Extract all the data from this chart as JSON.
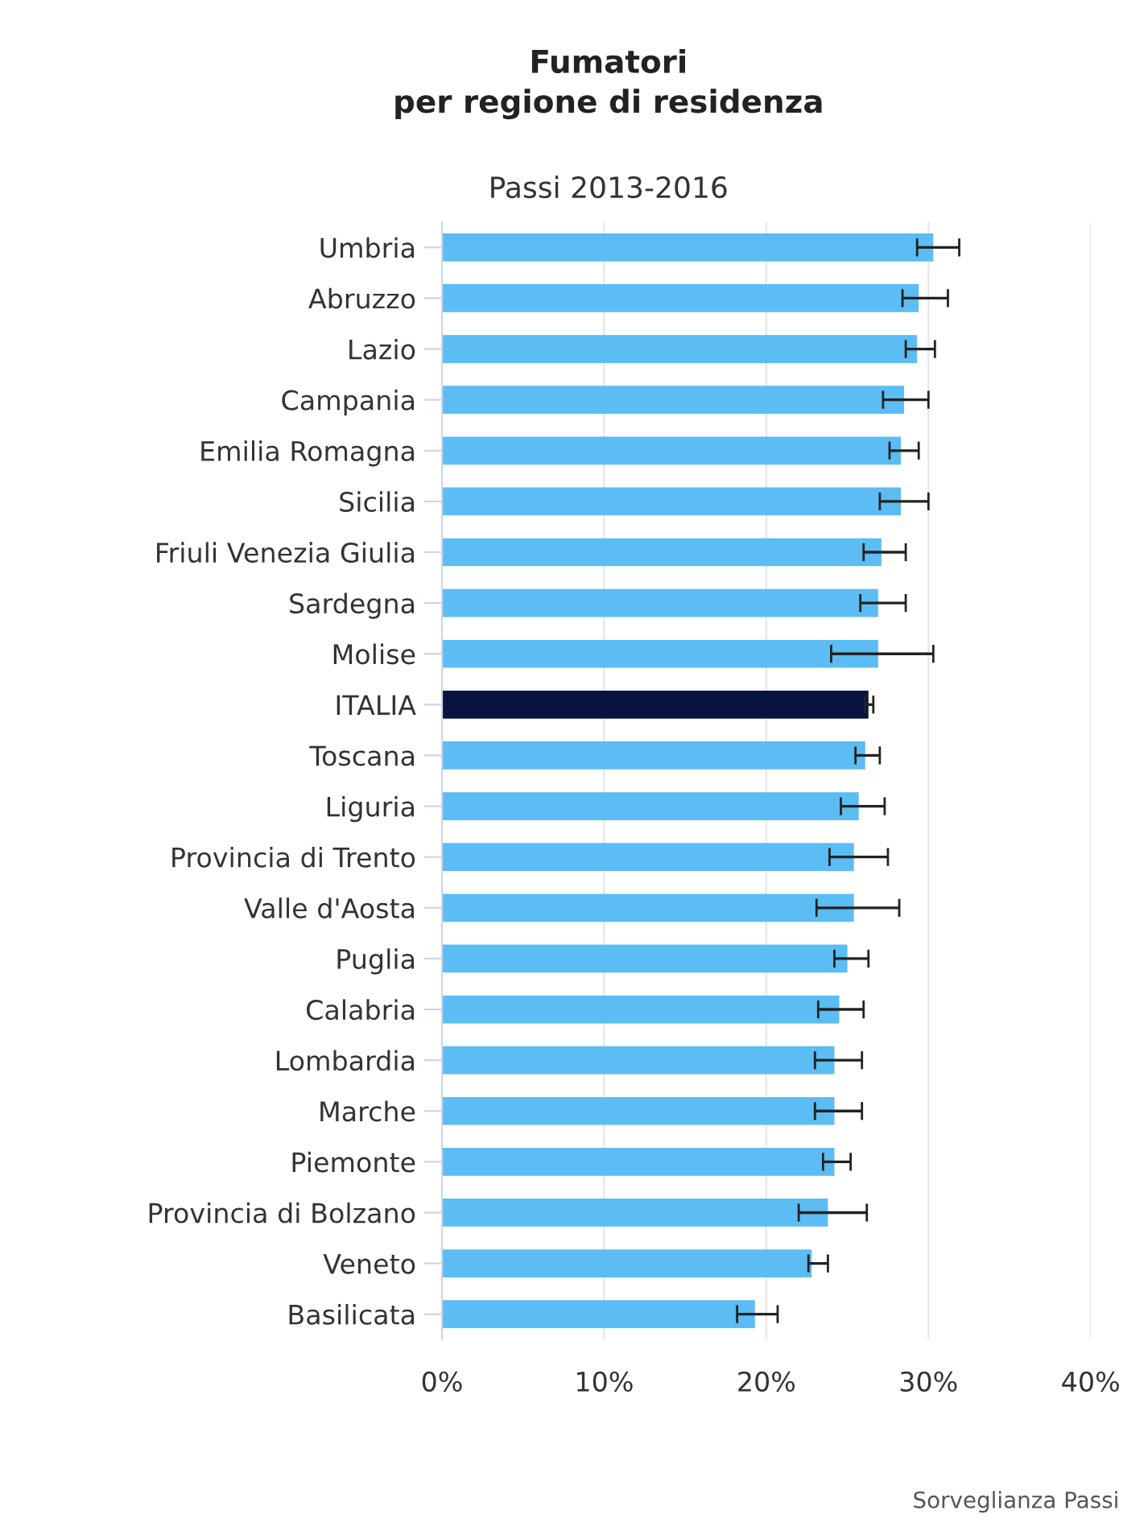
{
  "chart_data": {
    "type": "bar",
    "orientation": "horizontal",
    "title": "Fumatori\nper regione di residenza",
    "subtitle": "Passi 2013-2016",
    "categories": [
      "Umbria",
      "Abruzzo",
      "Lazio",
      "Campania",
      "Emilia Romagna",
      "Sicilia",
      "Friuli Venezia Giulia",
      "Sardegna",
      "Molise",
      "ITALIA",
      "Toscana",
      "Liguria",
      "Provincia di Trento",
      "Valle d'Aosta",
      "Puglia",
      "Calabria",
      "Lombardia",
      "Marche",
      "Piemonte",
      "Provincia di Bolzano",
      "Veneto",
      "Basilicata"
    ],
    "values": [
      30.3,
      29.4,
      29.3,
      28.5,
      28.3,
      28.3,
      27.1,
      26.9,
      26.9,
      26.3,
      26.1,
      25.7,
      25.4,
      25.4,
      25.0,
      24.5,
      24.2,
      24.2,
      24.2,
      23.8,
      22.8,
      19.3
    ],
    "errors": [
      [
        29.3,
        31.9
      ],
      [
        28.4,
        31.2
      ],
      [
        28.6,
        30.4
      ],
      [
        27.2,
        30.0
      ],
      [
        27.6,
        29.4
      ],
      [
        27.0,
        30.0
      ],
      [
        26.0,
        28.6
      ],
      [
        25.8,
        28.6
      ],
      [
        24.0,
        30.3
      ],
      [
        26.1,
        26.6
      ],
      [
        25.5,
        27.0
      ],
      [
        24.6,
        27.3
      ],
      [
        23.9,
        27.5
      ],
      [
        23.1,
        28.2
      ],
      [
        24.2,
        26.3
      ],
      [
        23.2,
        26.0
      ],
      [
        23.0,
        25.9
      ],
      [
        23.0,
        25.9
      ],
      [
        23.5,
        25.2
      ],
      [
        22.0,
        26.2
      ],
      [
        22.6,
        23.8
      ],
      [
        18.2,
        20.7
      ]
    ],
    "colors": [
      "#5bbdf3",
      "#5bbdf3",
      "#5bbdf3",
      "#5bbdf3",
      "#5bbdf3",
      "#5bbdf3",
      "#5bbdf3",
      "#5bbdf3",
      "#5bbdf3",
      "#0a1240",
      "#5bbdf3",
      "#5bbdf3",
      "#5bbdf3",
      "#5bbdf3",
      "#5bbdf3",
      "#5bbdf3",
      "#5bbdf3",
      "#5bbdf3",
      "#5bbdf3",
      "#5bbdf3",
      "#5bbdf3",
      "#5bbdf3"
    ],
    "xlim": [
      0,
      40
    ],
    "xticks": [
      {
        "value": 0,
        "label": "0%"
      },
      {
        "value": 10,
        "label": "10%"
      },
      {
        "value": 20,
        "label": "20%"
      },
      {
        "value": 30,
        "label": "30%"
      },
      {
        "value": 40,
        "label": "40%"
      }
    ],
    "grid": "x",
    "annotations": [
      "Sorveglianza Passi"
    ]
  }
}
